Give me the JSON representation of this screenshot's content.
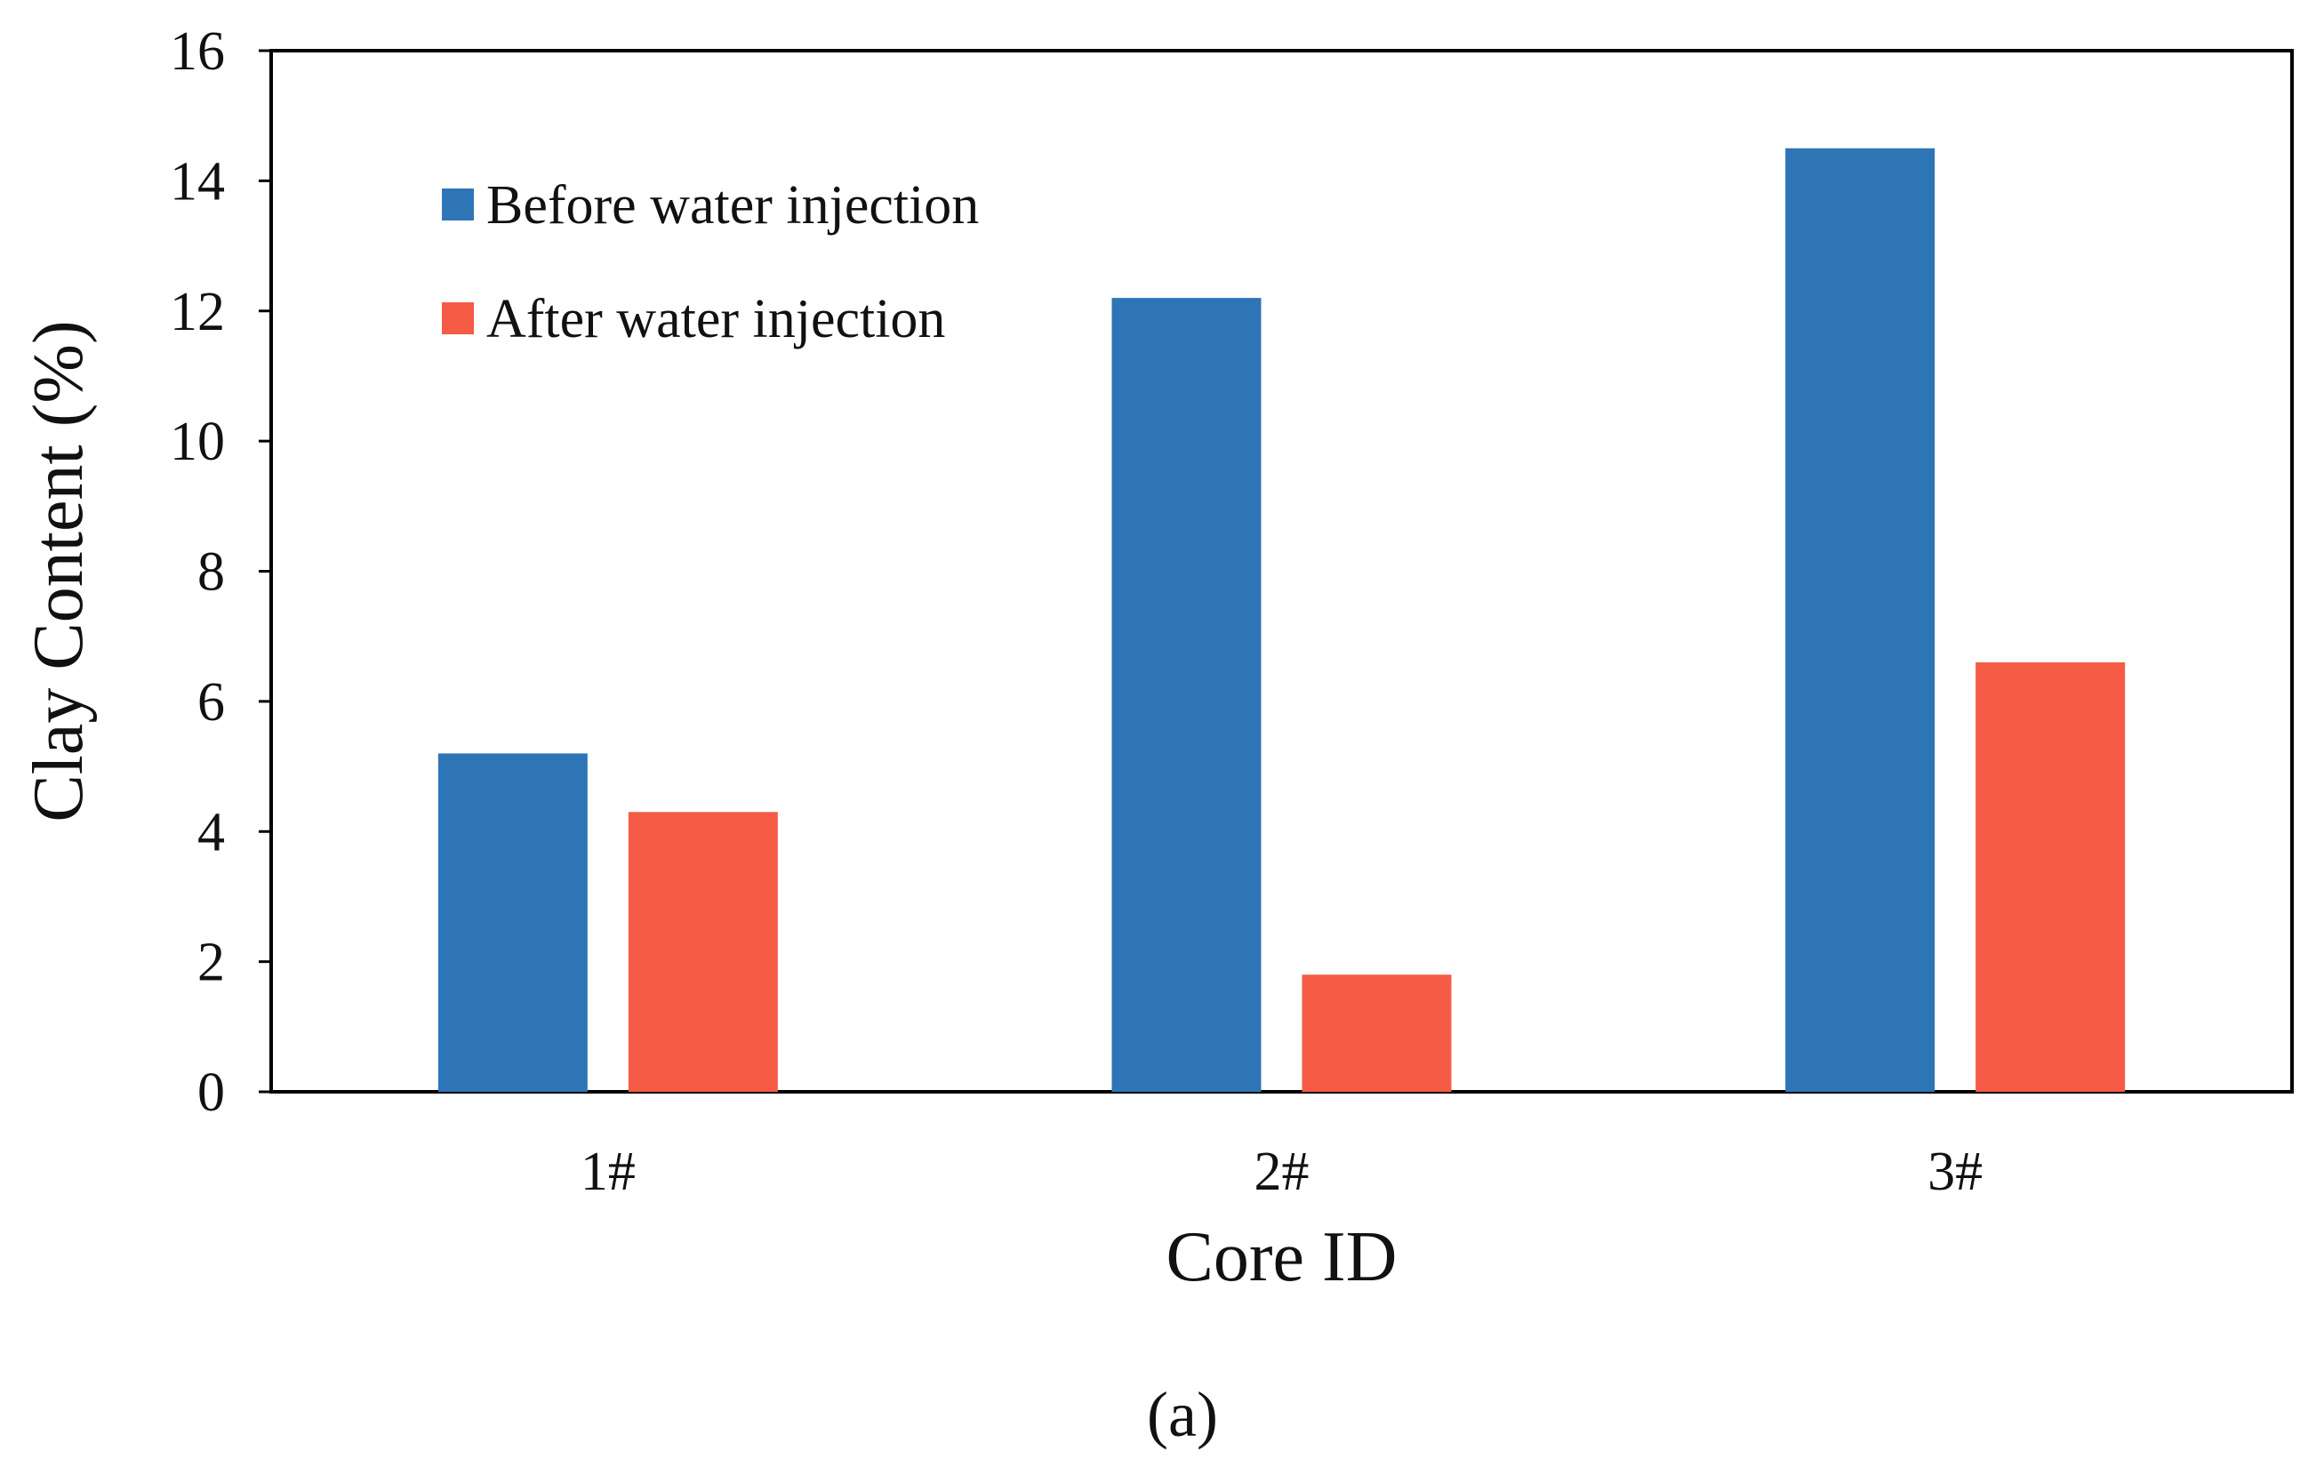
{
  "chart_data": {
    "type": "bar",
    "title": "",
    "panel_label": "(a)",
    "xlabel": "Core ID",
    "ylabel": "Clay Content (%)",
    "categories": [
      "1#",
      "2#",
      "3#"
    ],
    "ylim": [
      0,
      16
    ],
    "yticks": [
      0,
      2,
      4,
      6,
      8,
      10,
      12,
      14,
      16
    ],
    "ytick_labels": [
      "0",
      "2",
      "4",
      "6",
      "8",
      "10",
      "12",
      "14",
      "16"
    ],
    "grid": false,
    "legend_position": "top-left",
    "series": [
      {
        "name": "Before water injection",
        "color": "#2E75B6",
        "values": [
          5.2,
          12.2,
          14.5
        ]
      },
      {
        "name": "After water injection",
        "color": "#F55B45",
        "values": [
          4.3,
          1.8,
          6.6
        ]
      }
    ]
  }
}
